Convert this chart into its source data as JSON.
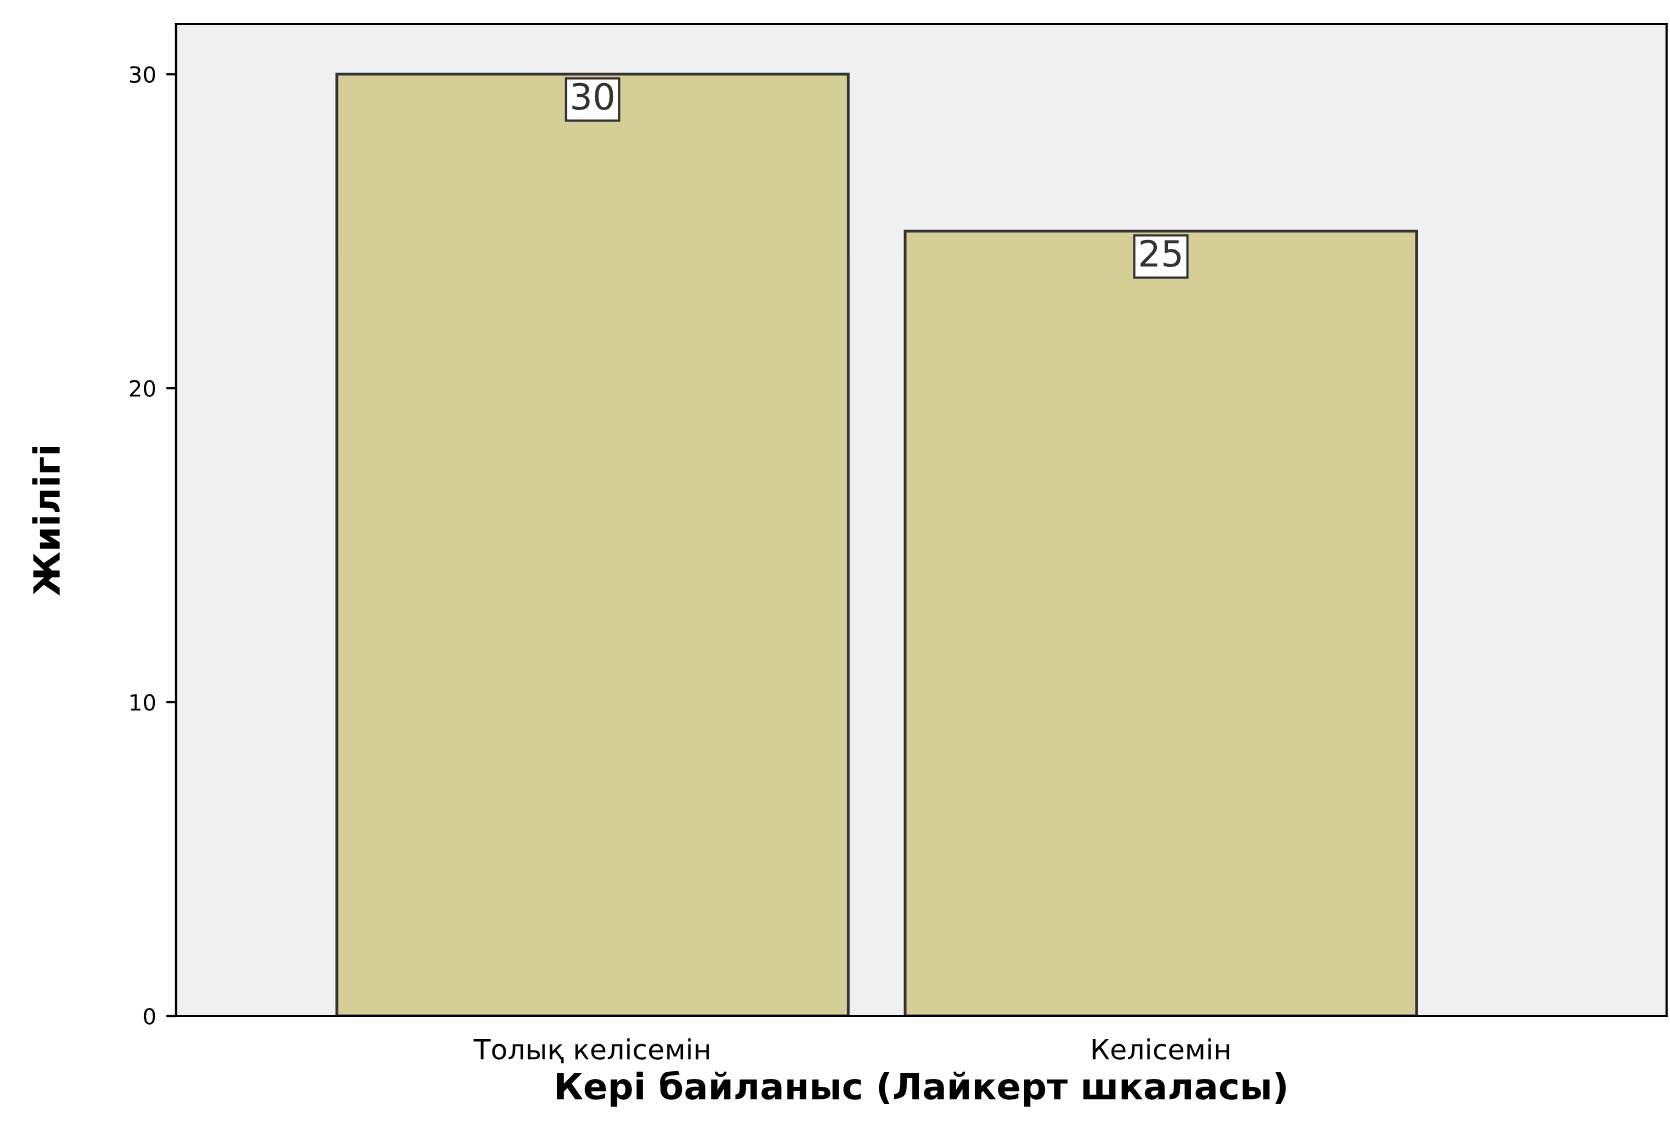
{
  "chart_data": {
    "type": "bar",
    "xlabel": "Кері байланыс (Лайкерт шкаласы)",
    "ylabel": "Жиілігі",
    "categories": [
      "Толық келісемін",
      "Келісемін"
    ],
    "values": [
      30,
      25
    ],
    "color": "#d4cf97",
    "ylim": [
      0,
      31.6
    ],
    "yticks": [
      0,
      10,
      20,
      30
    ],
    "grid": false,
    "data_labels": true
  }
}
